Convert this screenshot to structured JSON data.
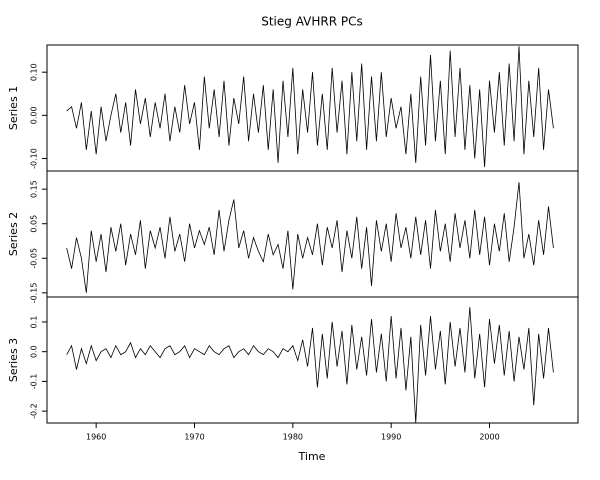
{
  "chart_data": {
    "type": "line",
    "facets": true,
    "title": "Stieg AVHRR PCs",
    "xlabel": "Time",
    "x": [
      1957,
      1957.5,
      1958,
      1958.5,
      1959,
      1959.5,
      1960,
      1960.5,
      1961,
      1961.5,
      1962,
      1962.5,
      1963,
      1963.5,
      1964,
      1964.5,
      1965,
      1965.5,
      1966,
      1966.5,
      1967,
      1967.5,
      1968,
      1968.5,
      1969,
      1969.5,
      1970,
      1970.5,
      1971,
      1971.5,
      1972,
      1972.5,
      1973,
      1973.5,
      1974,
      1974.5,
      1975,
      1975.5,
      1976,
      1976.5,
      1977,
      1977.5,
      1978,
      1978.5,
      1979,
      1979.5,
      1980,
      1980.5,
      1981,
      1981.5,
      1982,
      1982.5,
      1983,
      1983.5,
      1984,
      1984.5,
      1985,
      1985.5,
      1986,
      1986.5,
      1987,
      1987.5,
      1988,
      1988.5,
      1989,
      1989.5,
      1990,
      1990.5,
      1991,
      1991.5,
      1992,
      1992.5,
      1993,
      1993.5,
      1994,
      1994.5,
      1995,
      1995.5,
      1996,
      1996.5,
      1997,
      1997.5,
      1998,
      1998.5,
      1999,
      1999.5,
      2000,
      2000.5,
      2001,
      2001.5,
      2002,
      2002.5,
      2003,
      2003.5,
      2004,
      2004.5,
      2005,
      2005.5,
      2006,
      2006.5
    ],
    "xlim": [
      1955,
      2009
    ],
    "xticks": [
      1960,
      1970,
      1980,
      1990,
      2000
    ],
    "series": [
      {
        "name": "Series 1",
        "color": "#000000",
        "ylim": [
          -0.129,
          0.163
        ],
        "yticks": [
          {
            "value": -0.1,
            "label": "-0.10"
          },
          {
            "value": 0,
            "label": "0.00"
          },
          {
            "value": 0.1,
            "label": "0.10"
          }
        ],
        "values": [
          0.01,
          0.02,
          -0.03,
          0.03,
          -0.08,
          0.01,
          -0.09,
          0.02,
          -0.06,
          0.0,
          0.05,
          -0.04,
          0.03,
          -0.07,
          0.06,
          -0.02,
          0.04,
          -0.05,
          0.03,
          -0.03,
          0.05,
          -0.06,
          0.02,
          -0.04,
          0.07,
          -0.02,
          0.03,
          -0.08,
          0.09,
          -0.03,
          0.06,
          -0.05,
          0.08,
          -0.07,
          0.04,
          -0.02,
          0.09,
          -0.06,
          0.05,
          -0.04,
          0.07,
          -0.08,
          0.06,
          -0.11,
          0.08,
          -0.05,
          0.11,
          -0.09,
          0.06,
          -0.04,
          0.1,
          -0.07,
          0.05,
          -0.08,
          0.11,
          -0.04,
          0.08,
          -0.09,
          0.1,
          -0.06,
          0.12,
          -0.08,
          0.09,
          -0.06,
          0.1,
          -0.05,
          0.04,
          -0.03,
          0.02,
          -0.09,
          0.05,
          -0.11,
          0.09,
          -0.07,
          0.14,
          -0.06,
          0.08,
          -0.09,
          0.15,
          -0.05,
          0.11,
          -0.08,
          0.07,
          -0.1,
          0.06,
          -0.12,
          0.08,
          -0.04,
          0.1,
          -0.07,
          0.12,
          -0.06,
          0.16,
          -0.09,
          0.08,
          -0.05,
          0.11,
          -0.08,
          0.06,
          -0.03
        ]
      },
      {
        "name": "Series 2",
        "color": "#000000",
        "ylim": [
          -0.162,
          0.2025
        ],
        "yticks": [
          {
            "value": -0.15,
            "label": "-0.15"
          },
          {
            "value": -0.05,
            "label": "-0.05"
          },
          0.05,
          0.15
        ],
        "values": [
          -0.02,
          -0.08,
          0.01,
          -0.05,
          -0.15,
          0.03,
          -0.06,
          0.02,
          -0.09,
          0.04,
          -0.03,
          0.05,
          -0.07,
          0.02,
          -0.04,
          0.06,
          -0.08,
          0.03,
          -0.02,
          0.04,
          -0.05,
          0.07,
          -0.03,
          0.02,
          -0.06,
          0.05,
          -0.02,
          0.03,
          -0.01,
          0.04,
          -0.04,
          0.09,
          -0.03,
          0.06,
          0.12,
          -0.02,
          0.03,
          -0.05,
          0.01,
          -0.03,
          -0.06,
          0.02,
          -0.04,
          -0.01,
          -0.08,
          0.03,
          -0.14,
          0.02,
          -0.05,
          0.01,
          -0.04,
          0.05,
          -0.07,
          0.04,
          -0.02,
          0.06,
          -0.09,
          0.03,
          -0.05,
          0.07,
          -0.08,
          0.04,
          -0.13,
          0.06,
          -0.03,
          0.05,
          -0.06,
          0.08,
          -0.02,
          0.04,
          -0.05,
          0.07,
          -0.04,
          0.06,
          -0.08,
          0.09,
          -0.03,
          0.05,
          -0.06,
          0.08,
          -0.02,
          0.06,
          -0.05,
          0.09,
          -0.04,
          0.07,
          -0.07,
          0.05,
          -0.03,
          0.08,
          -0.06,
          0.04,
          0.17,
          -0.05,
          0.02,
          -0.07,
          0.06,
          -0.04,
          0.1,
          -0.02
        ]
      },
      {
        "name": "Series 3",
        "color": "#000000",
        "ylim": [
          -0.24,
          0.184
        ],
        "yticks": [
          -0.2,
          -0.1,
          {
            "value": 0,
            "label": "0.0"
          },
          0.1
        ],
        "values": [
          -0.01,
          0.02,
          -0.06,
          0.01,
          -0.04,
          0.02,
          -0.03,
          0.0,
          0.01,
          -0.02,
          0.02,
          -0.01,
          0.0,
          0.03,
          -0.02,
          0.01,
          -0.01,
          0.02,
          0.0,
          -0.02,
          0.01,
          0.02,
          -0.01,
          0.0,
          0.02,
          -0.02,
          0.01,
          0.0,
          -0.01,
          0.02,
          0.0,
          -0.01,
          0.01,
          0.02,
          -0.02,
          0.0,
          0.01,
          -0.01,
          0.02,
          0.0,
          -0.01,
          0.01,
          0.0,
          -0.02,
          0.01,
          0.0,
          0.02,
          -0.03,
          0.04,
          -0.05,
          0.08,
          -0.12,
          0.06,
          -0.09,
          0.1,
          -0.05,
          0.07,
          -0.11,
          0.09,
          -0.06,
          0.05,
          -0.08,
          0.11,
          -0.07,
          0.06,
          -0.1,
          0.12,
          -0.09,
          0.08,
          -0.13,
          0.05,
          -0.24,
          0.09,
          -0.08,
          0.12,
          -0.06,
          0.07,
          -0.11,
          0.1,
          -0.05,
          0.08,
          -0.07,
          0.15,
          -0.09,
          0.06,
          -0.12,
          0.11,
          -0.04,
          0.09,
          -0.08,
          0.07,
          -0.1,
          0.05,
          -0.06,
          0.08,
          -0.18,
          0.06,
          -0.09,
          0.08,
          -0.07
        ]
      }
    ]
  }
}
